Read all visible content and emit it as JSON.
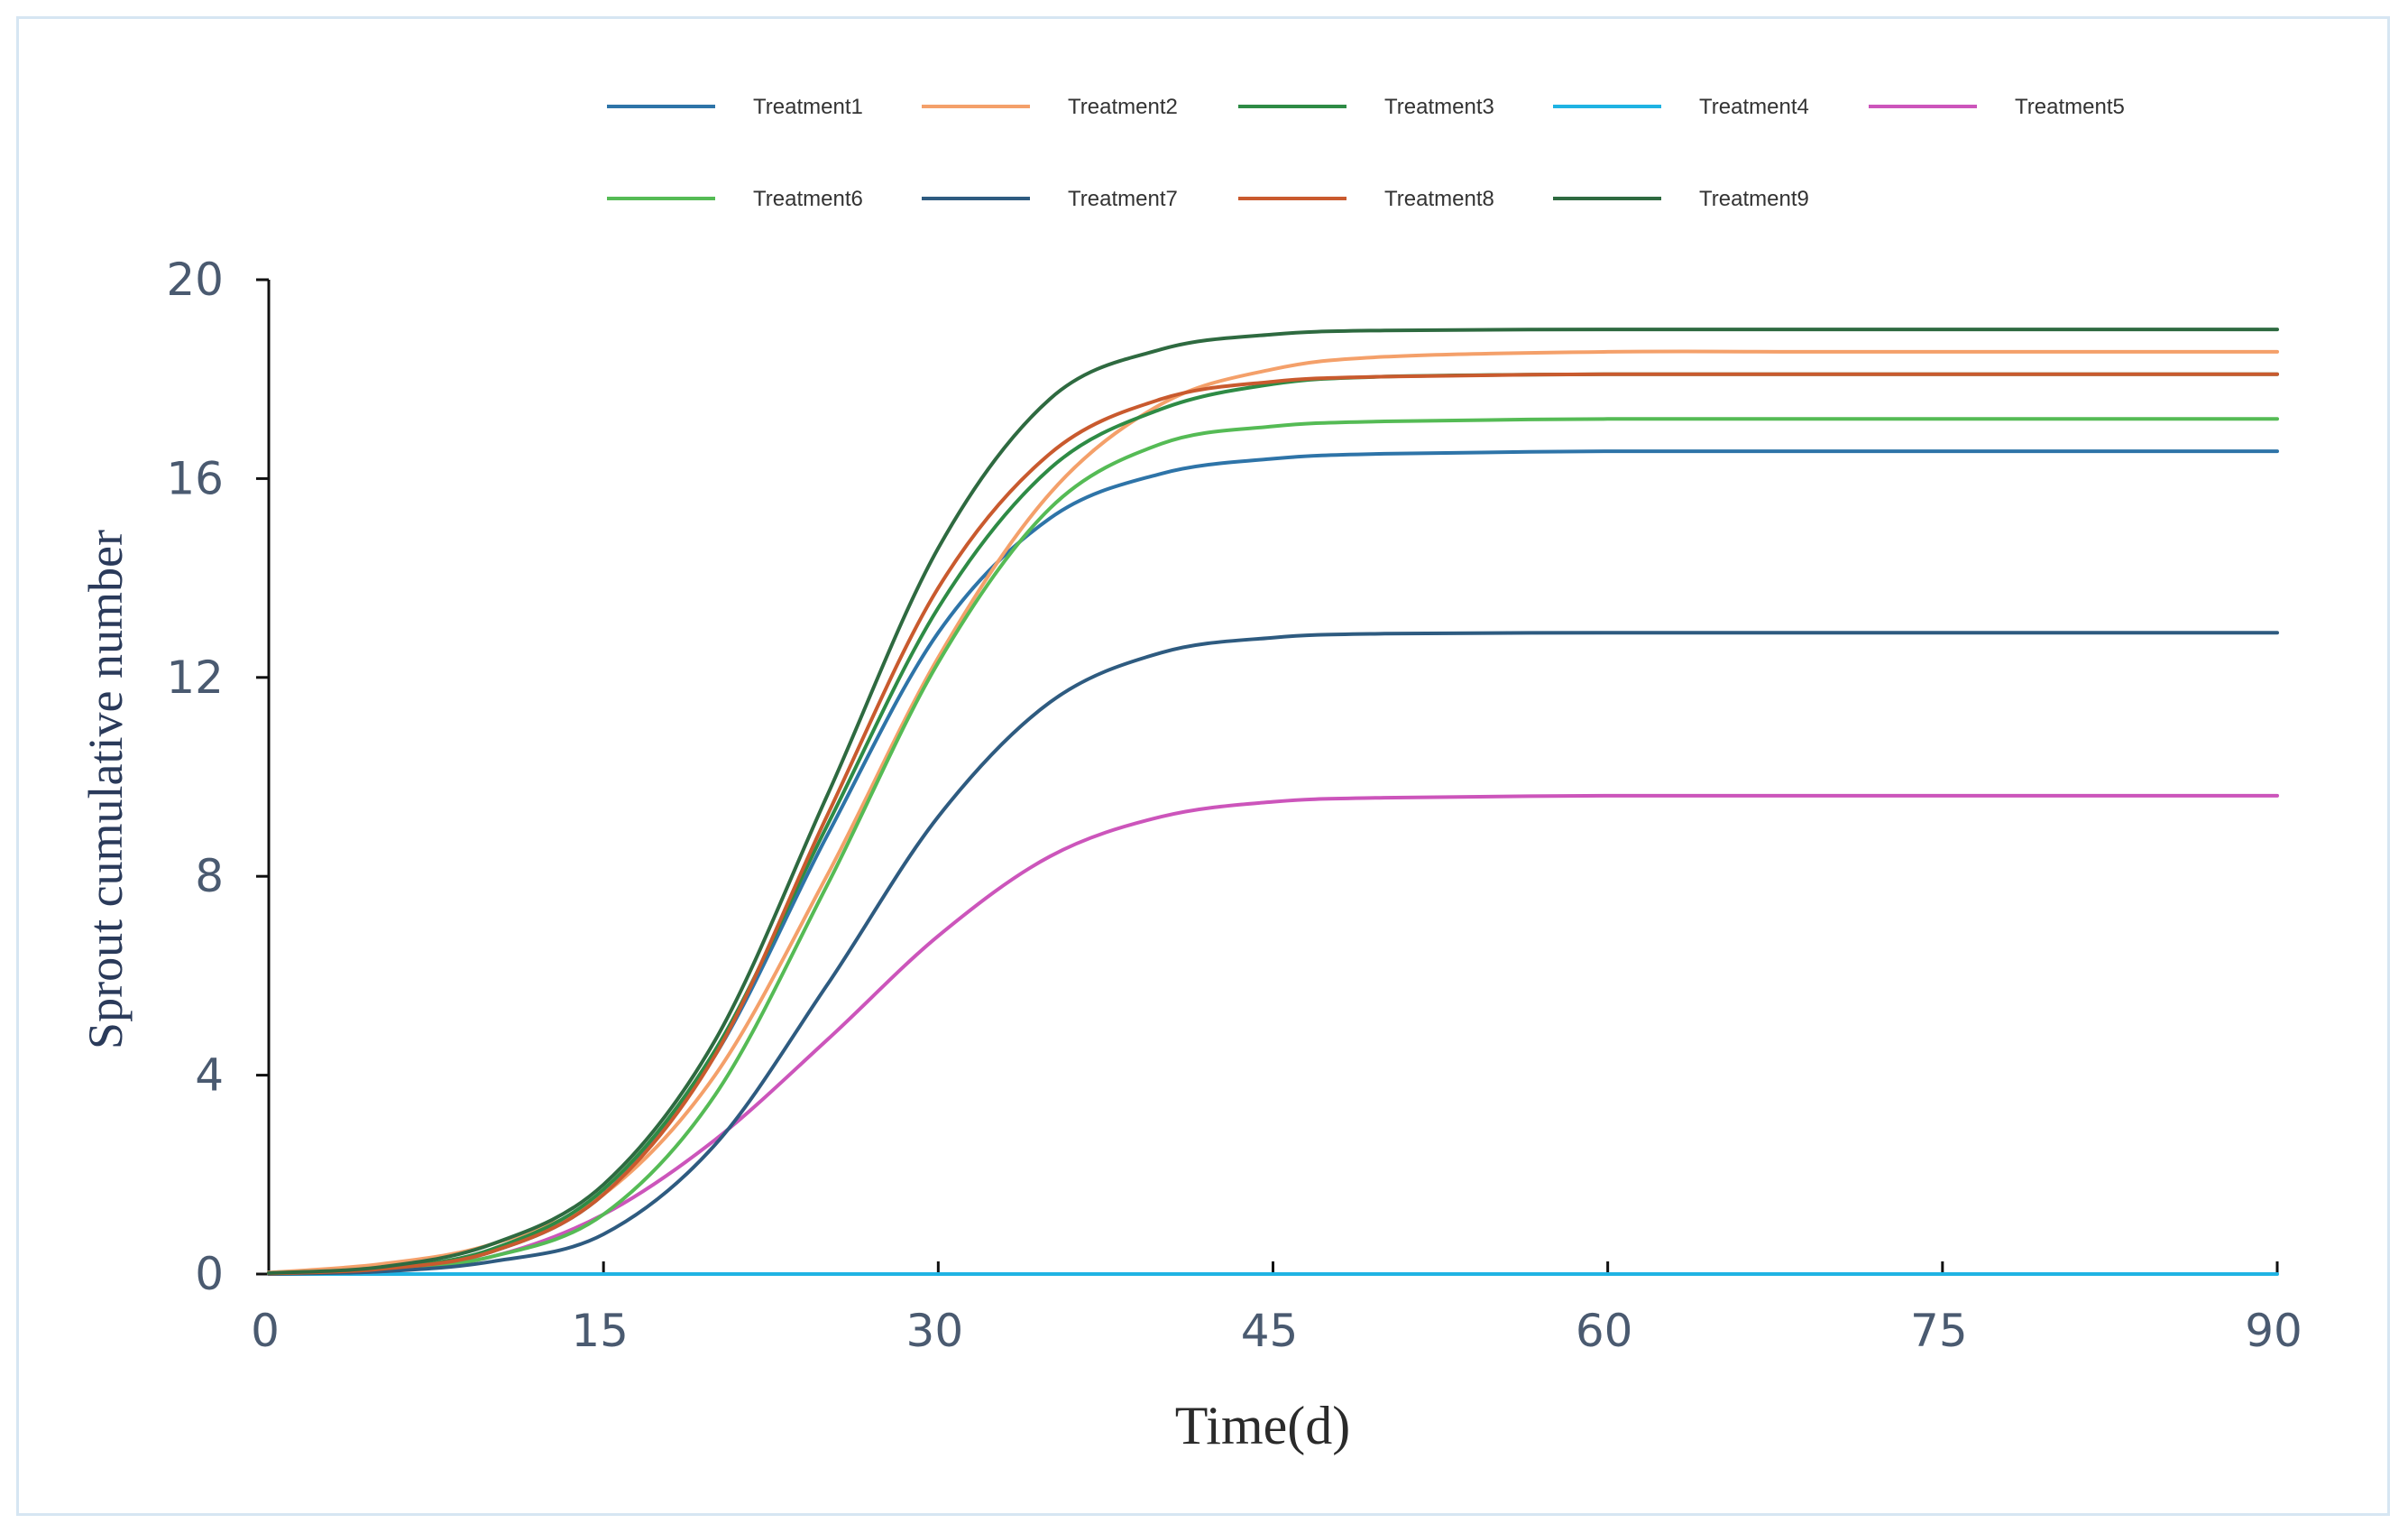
{
  "chart_data": {
    "type": "line",
    "title": "",
    "xlabel": "Time(d)",
    "ylabel": "Sprout cumulative number",
    "xlim": [
      0,
      90
    ],
    "ylim": [
      0,
      20
    ],
    "xticks": [
      0,
      15,
      30,
      45,
      60,
      75,
      90
    ],
    "yticks": [
      0,
      4,
      8,
      12,
      16,
      20
    ],
    "x": [
      0,
      5,
      10,
      15,
      20,
      25,
      30,
      35,
      40,
      45,
      50,
      60,
      70,
      80,
      90
    ],
    "legend_position": "top",
    "series": [
      {
        "name": "Treatment1",
        "color": "#2e74a8",
        "values": [
          0.01,
          0.1,
          0.45,
          1.6,
          4.4,
          8.8,
          12.9,
          15.2,
          16.1,
          16.4,
          16.5,
          16.55,
          16.55,
          16.55,
          16.55
        ]
      },
      {
        "name": "Treatment2",
        "color": "#f4a06a",
        "values": [
          0.03,
          0.2,
          0.6,
          1.6,
          4.0,
          8.0,
          12.4,
          15.7,
          17.5,
          18.2,
          18.45,
          18.55,
          18.55,
          18.55,
          18.55
        ]
      },
      {
        "name": "Treatment3",
        "color": "#2e8b45",
        "values": [
          0.01,
          0.1,
          0.5,
          1.7,
          4.5,
          9.0,
          13.4,
          16.2,
          17.4,
          17.9,
          18.05,
          18.1,
          18.1,
          18.1,
          18.1
        ]
      },
      {
        "name": "Treatment4",
        "color": "#1fb3e3",
        "values": [
          0.0,
          0.0,
          0.0,
          0.0,
          0.0,
          0.0,
          0.0,
          0.0,
          0.0,
          0.0,
          0.0,
          0.0,
          0.0,
          0.0,
          0.0
        ]
      },
      {
        "name": "Treatment5",
        "color": "#cc55bb",
        "values": [
          0.01,
          0.08,
          0.35,
          1.2,
          2.7,
          4.7,
          6.8,
          8.4,
          9.2,
          9.5,
          9.58,
          9.62,
          9.62,
          9.62,
          9.62
        ]
      },
      {
        "name": "Treatment6",
        "color": "#55bb55",
        "values": [
          0.01,
          0.07,
          0.35,
          1.2,
          3.6,
          7.8,
          12.3,
          15.4,
          16.7,
          17.05,
          17.15,
          17.2,
          17.2,
          17.2,
          17.2
        ]
      },
      {
        "name": "Treatment7",
        "color": "#2e5b80",
        "values": [
          0.0,
          0.05,
          0.25,
          0.8,
          2.6,
          5.8,
          9.2,
          11.5,
          12.5,
          12.8,
          12.88,
          12.9,
          12.9,
          12.9,
          12.9
        ]
      },
      {
        "name": "Treatment8",
        "color": "#c95a2e",
        "values": [
          0.01,
          0.1,
          0.45,
          1.6,
          4.4,
          9.2,
          13.8,
          16.5,
          17.6,
          17.95,
          18.05,
          18.1,
          18.1,
          18.1,
          18.1
        ]
      },
      {
        "name": "Treatment9",
        "color": "#2e6a40",
        "values": [
          0.02,
          0.14,
          0.6,
          1.8,
          4.7,
          9.6,
          14.6,
          17.6,
          18.6,
          18.9,
          18.98,
          19.0,
          19.0,
          19.0,
          19.0
        ]
      }
    ]
  }
}
